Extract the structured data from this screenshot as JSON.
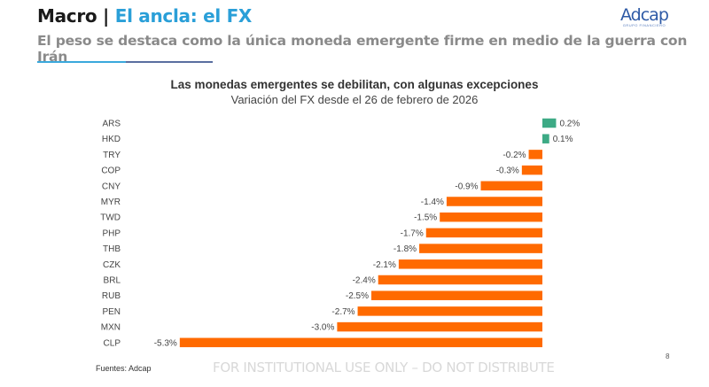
{
  "header": {
    "section": "Macro",
    "separator": " | ",
    "title": "El ancla: el FX",
    "subtitle": "El peso se destaca como la única moneda emergente firme en medio de la guerra con Irán"
  },
  "logo": {
    "brand": "Adcap",
    "tagline": "GRUPO FINANCIERO"
  },
  "colors": {
    "positive": "#3daa85",
    "negative": "#ff6a00",
    "title_accent": "#2a9fd8"
  },
  "chart_data": {
    "type": "bar",
    "orientation": "horizontal",
    "title": "Las monedas emergentes se debilitan, con algunas excepciones",
    "subtitle": "Variación del FX desde el 26 de febrero de 2026",
    "xlabel": "",
    "ylabel": "",
    "unit": "%",
    "xlim": [
      -5.3,
      0.2
    ],
    "grid": false,
    "legend": "none",
    "categories": [
      "ARS",
      "HKD",
      "TRY",
      "COP",
      "CNY",
      "MYR",
      "TWD",
      "PHP",
      "THB",
      "CZK",
      "BRL",
      "RUB",
      "PEN",
      "MXN",
      "CLP"
    ],
    "values": [
      0.2,
      0.1,
      -0.2,
      -0.3,
      -0.9,
      -1.4,
      -1.5,
      -1.7,
      -1.8,
      -2.1,
      -2.4,
      -2.5,
      -2.7,
      -3.0,
      -5.3
    ],
    "labels": [
      "0.2%",
      "0.1%",
      "-0.2%",
      "-0.3%",
      "-0.9%",
      "-1.4%",
      "-1.5%",
      "-1.7%",
      "-1.8%",
      "-2.1%",
      "-2.4%",
      "-2.5%",
      "-2.7%",
      "-3.0%",
      "-5.3%"
    ]
  },
  "footer": {
    "source": "Fuentes: Adcap",
    "disclaimer": "FOR INSTITUTIONAL USE ONLY – DO NOT DISTRIBUTE",
    "page_number": "8"
  }
}
